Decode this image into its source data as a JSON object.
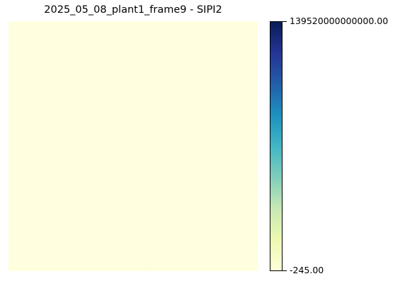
{
  "chart_data": {
    "type": "heatmap",
    "title": "2025_05_08_plant1_frame9 - SIPI2",
    "colormap": "YlGnBu",
    "colorbar": {
      "min": -245.0,
      "max": 139520000000000.0,
      "min_label": "-245.00",
      "max_label": "139520000000000.00"
    },
    "background_value_description": "uniform low values (pale yellow) across the whole image with a few isolated speckles",
    "axes_visible": false
  },
  "colors": {
    "low": "#ffffd9",
    "high": "#081d58",
    "speckle": "#e8ecc8"
  }
}
